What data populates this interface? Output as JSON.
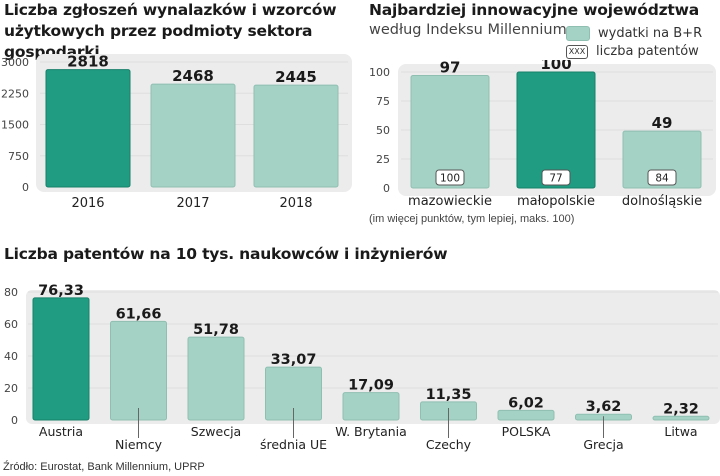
{
  "source": "Źródło: Eurostat, Bank Millennium, UPRP",
  "colors": {
    "dark": "#1f9c82",
    "light": "#a4d3c5",
    "panel": "#ececec",
    "grid": "#dedede"
  },
  "chart_data": [
    {
      "id": "zgloszenia",
      "type": "bar",
      "title": "Liczba zgłoszeń wynalazków i wzorców użytkowych przez podmioty sektora gospodarki",
      "title_lines": [
        "Liczba zgłoszeń wynalazków i wzorców",
        "użytkowych przez podmioty sektora gospodarki"
      ],
      "categories": [
        "2016",
        "2017",
        "2018"
      ],
      "values": [
        2818,
        2468,
        2445
      ],
      "value_labels": [
        "2818",
        "2468",
        "2445"
      ],
      "highlight": [
        true,
        false,
        false
      ],
      "yticks": [
        0,
        750,
        1500,
        2250,
        3000
      ],
      "ylim": [
        0,
        3000
      ],
      "xlabel": "",
      "ylabel": ""
    },
    {
      "id": "wojewodztwa",
      "type": "bar",
      "title": "Najbardziej innowacyjne województwa",
      "subtitle": "według Indeksu Millennium",
      "categories": [
        "mazowieckie",
        "małopolskie",
        "dolnośląskie"
      ],
      "series": [
        {
          "name": "wydatki na B+R",
          "values": [
            97,
            100,
            49
          ],
          "value_labels": [
            "97",
            "100",
            "49"
          ]
        },
        {
          "name": "liczba patentów",
          "values": [
            100,
            77,
            84
          ],
          "value_labels": [
            "100",
            "77",
            "84"
          ]
        }
      ],
      "highlight": [
        false,
        true,
        false
      ],
      "legend": {
        "swatch_label": "wydatki na B+R",
        "box_text": "XXX",
        "box_label": "liczba patentów",
        "position": "top-right"
      },
      "yticks": [
        0,
        25,
        50,
        75,
        100
      ],
      "ylim": [
        0,
        100
      ],
      "note": "(im więcej punktów, tym lepiej, maks. 100)"
    },
    {
      "id": "patenty",
      "type": "bar",
      "title": "Liczba patentów na 10 tys. naukowców i inżynierów",
      "categories": [
        "Austria",
        "Niemcy",
        "Szwecja",
        "średnia UE",
        "W. Brytania",
        "Czechy",
        "POLSKA",
        "Grecja",
        "Litwa"
      ],
      "values": [
        76.33,
        61.66,
        51.78,
        33.07,
        17.09,
        11.35,
        6.02,
        3.62,
        2.32
      ],
      "value_labels": [
        "76,33",
        "61,66",
        "51,78",
        "33,07",
        "17,09",
        "11,35",
        "6,02",
        "3,62",
        "2,32"
      ],
      "highlight": [
        true,
        false,
        false,
        false,
        false,
        false,
        false,
        false,
        false
      ],
      "yticks": [
        0,
        20,
        40,
        60,
        80
      ],
      "ylim": [
        0,
        80
      ]
    }
  ]
}
